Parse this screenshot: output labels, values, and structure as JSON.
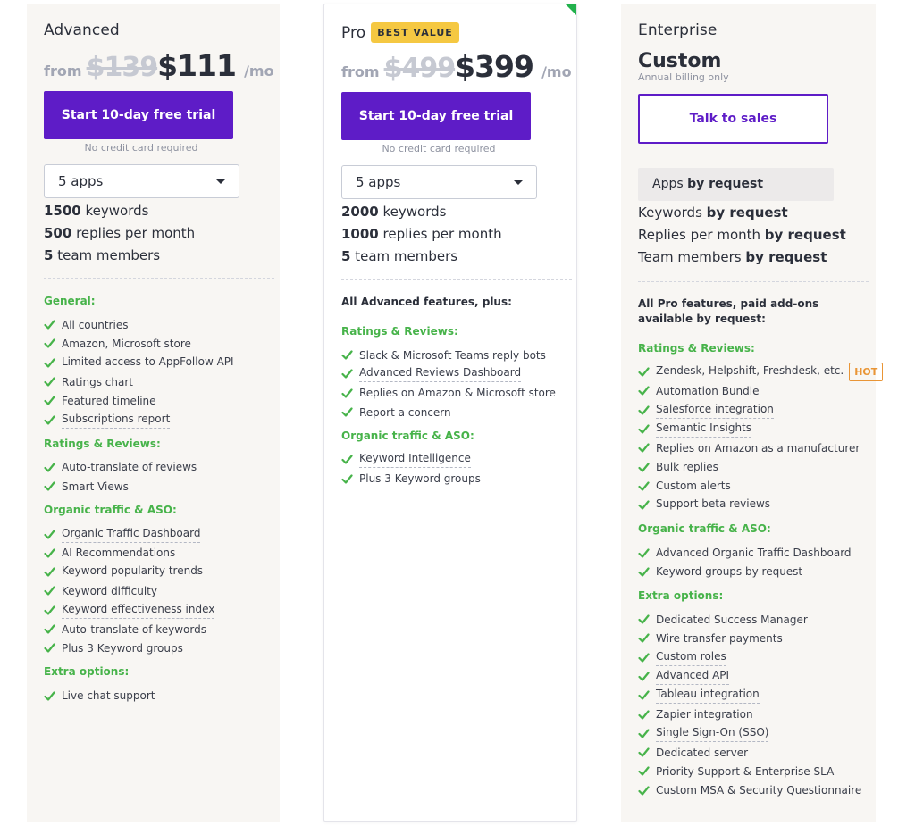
{
  "colors": {
    "accent_purple": "#5e1cc7",
    "feature_green": "#47b34a",
    "hot_orange": "#e99536",
    "badge_yellow": "#f5c842",
    "corner_green": "#22b14c"
  },
  "advanced": {
    "name": "Advanced",
    "price_from": "from",
    "price_old": "$139",
    "price_new": "$111",
    "price_per": "/mo",
    "cta_label": "Start 10-day free trial",
    "cta_note": "No credit card required",
    "apps_select": "5 apps",
    "stats": [
      {
        "value": "1500",
        "label": " keywords"
      },
      {
        "value": "500",
        "label": " replies per month"
      },
      {
        "value": "5",
        "label": " team members"
      }
    ],
    "sections": [
      {
        "title": "General:",
        "items": [
          "All countries",
          "Amazon, Microsoft store",
          "Limited access to AppFollow API",
          "Ratings chart",
          "Featured timeline",
          "Subscriptions report"
        ]
      },
      {
        "title": "Ratings & Reviews:",
        "items": [
          "Auto-translate of reviews",
          "Smart Views"
        ]
      },
      {
        "title": "Organic traffic & ASO:",
        "items": [
          "Organic Traffic Dashboard",
          "AI Recommendations",
          "Keyword popularity trends",
          "Keyword difficulty",
          "Keyword effectiveness index",
          "Auto-translate of keywords",
          "Plus 3 Keyword groups"
        ]
      },
      {
        "title": "Extra options:",
        "items": [
          "Live chat support"
        ]
      }
    ]
  },
  "pro": {
    "name": "Pro",
    "badge": "BEST VALUE",
    "price_from": "from",
    "price_old": "$499",
    "price_new": "$399",
    "price_per": "/mo",
    "cta_label": "Start 10-day free trial",
    "cta_note": "No credit card required",
    "apps_select": "5 apps",
    "stats": [
      {
        "value": "2000",
        "label": " keywords"
      },
      {
        "value": "1000",
        "label": " replies per month"
      },
      {
        "value": "5",
        "label": " team members"
      }
    ],
    "intro": "All Advanced features, plus:",
    "sections": [
      {
        "title": "Ratings & Reviews:",
        "items": [
          "Slack & Microsoft Teams reply bots",
          "Advanced Reviews Dashboard",
          "Replies on Amazon & Microsoft store",
          "Report a concern"
        ]
      },
      {
        "title": "Organic traffic & ASO:",
        "items": [
          "Keyword Intelligence",
          "Plus 3 Keyword groups"
        ]
      }
    ]
  },
  "enterprise": {
    "name": "Enterprise",
    "price_label": "Custom",
    "billing_note": "Annual billing only",
    "cta_label": "Talk to sales",
    "apps_label": "Apps ",
    "apps_value": "by request",
    "stats": [
      {
        "label": "Keywords ",
        "value": "by request"
      },
      {
        "label": "Replies per month ",
        "value": "by request"
      },
      {
        "label": "Team members ",
        "value": "by request"
      }
    ],
    "intro": "All Pro features, paid add-ons available by request:",
    "hot_badge": "HOT",
    "sections": [
      {
        "title": "Ratings & Reviews:",
        "items": [
          "Zendesk, Helpshift, Freshdesk, etc.",
          "Automation Bundle",
          "Salesforce integration",
          "Semantic Insights",
          "Replies on Amazon as a manufacturer",
          "Bulk replies",
          "Custom alerts",
          "Support beta reviews"
        ]
      },
      {
        "title": "Organic traffic & ASO:",
        "items": [
          "Advanced Organic Traffic Dashboard",
          "Keyword groups by request"
        ]
      },
      {
        "title": "Extra options:",
        "items": [
          "Dedicated Success Manager",
          "Wire transfer payments",
          "Custom roles",
          "Advanced API",
          "Tableau integration",
          "Zapier integration",
          "Single Sign-On (SSO)",
          "Dedicated server",
          "Priority Support & Enterprise SLA",
          "Custom MSA & Security Questionnaire"
        ]
      }
    ]
  }
}
